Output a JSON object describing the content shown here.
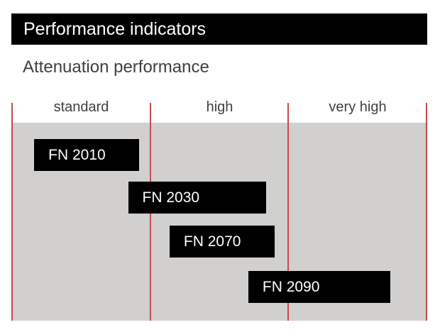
{
  "title": "Performance indicators",
  "subtitle": "Attenuation performance",
  "chart_data": {
    "type": "bar",
    "variant": "horizontal-range-bars",
    "title": "Attenuation performance",
    "categories": [
      "standard",
      "high",
      "very high"
    ],
    "x_axis": {
      "min": 0,
      "max": 3,
      "gridlines": true,
      "unit": "attenuation level (category widths)"
    },
    "series": [
      {
        "name": "FN 2010",
        "start": 0.16,
        "end": 0.92,
        "spans": [
          "standard"
        ]
      },
      {
        "name": "FN 2030",
        "start": 0.84,
        "end": 1.84,
        "spans": [
          "standard",
          "high"
        ]
      },
      {
        "name": "FN 2070",
        "start": 1.14,
        "end": 1.9,
        "spans": [
          "high"
        ]
      },
      {
        "name": "FN 2090",
        "start": 1.71,
        "end": 2.74,
        "spans": [
          "high",
          "very high"
        ]
      }
    ],
    "colors": {
      "bar": "#000000",
      "bar_label": "#ffffff",
      "divider": "#c34a52",
      "plot_background": "#d1d0ce"
    }
  },
  "colors": {
    "title_bar_bg": "#000000",
    "title_bar_fg": "#ffffff",
    "subtitle_fg": "#3f3f3f",
    "column_header_fg": "#3f3f3f"
  }
}
